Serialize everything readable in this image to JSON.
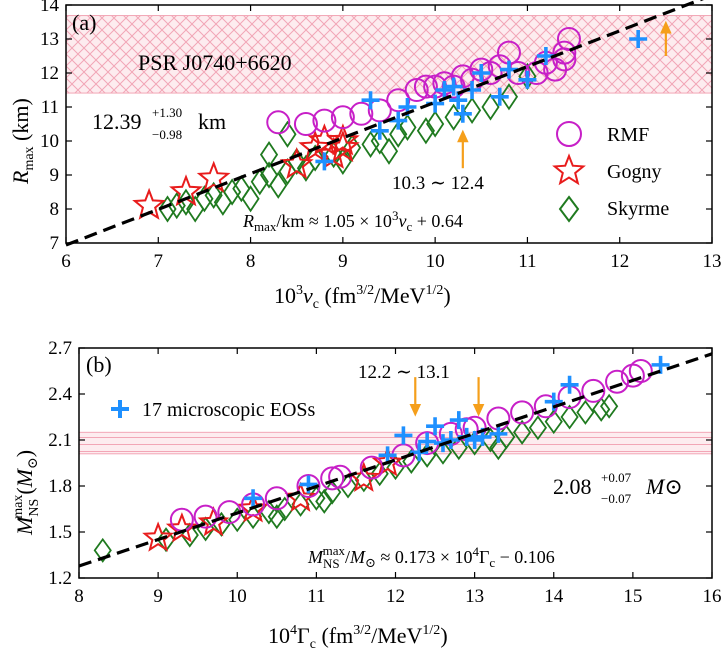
{
  "chart_data": [
    {
      "type": "scatter",
      "panel_label": "(a)",
      "xlabel": "10³ν_c (fm^{3/2}/MeV^{1/2})",
      "ylabel": "R_max (km)",
      "xlim": [
        6,
        13
      ],
      "ylim": [
        7,
        14
      ],
      "xticks": [
        "6",
        "7",
        "8",
        "9",
        "10",
        "11",
        "12",
        "13"
      ],
      "yticks": [
        "7",
        "8",
        "9",
        "10",
        "11",
        "12",
        "13",
        "14"
      ],
      "band": {
        "label": "PSR J0740+6620",
        "ymin": 11.41,
        "ymax": 13.69,
        "value": "12.39",
        "sup": "+1.30",
        "sub": "−0.98",
        "unit": "km"
      },
      "fit": {
        "slope": 1.05,
        "intercept": 0.64,
        "x_range": [
          6,
          13
        ],
        "label": "R_max/km ≈ 1.05 × 10³ν_c + 0.64"
      },
      "annotation": "10.3 ∼ 12.4",
      "arrows": [
        {
          "x": 10.3,
          "y_from": 9.2,
          "y_to": 10.3
        },
        {
          "x": 12.5,
          "y_from": 12.5,
          "y_to": 13.5
        }
      ],
      "legend": [
        "RMF",
        "Gogny",
        "Skyrme"
      ],
      "series": [
        {
          "name": "RMF",
          "marker": "circle",
          "points": [
            [
              8.3,
              10.55
            ],
            [
              8.6,
              10.5
            ],
            [
              8.8,
              10.6
            ],
            [
              9.0,
              10.7
            ],
            [
              9.2,
              10.8
            ],
            [
              9.4,
              10.9
            ],
            [
              9.6,
              11.2
            ],
            [
              9.8,
              11.5
            ],
            [
              9.9,
              11.6
            ],
            [
              10.0,
              11.6
            ],
            [
              10.1,
              11.7
            ],
            [
              10.2,
              11.6
            ],
            [
              10.3,
              11.9
            ],
            [
              10.4,
              11.8
            ],
            [
              10.5,
              12.1
            ],
            [
              10.6,
              12.0
            ],
            [
              10.7,
              12.2
            ],
            [
              10.8,
              12.6
            ],
            [
              10.9,
              12.0
            ],
            [
              11.1,
              12.0
            ],
            [
              11.2,
              12.3
            ],
            [
              11.3,
              12.1
            ],
            [
              11.4,
              12.4
            ],
            [
              11.45,
              13.0
            ],
            [
              11.4,
              12.6
            ]
          ]
        },
        {
          "name": "Gogny",
          "marker": "star",
          "points": [
            [
              6.9,
              8.1
            ],
            [
              7.3,
              8.5
            ],
            [
              7.6,
              8.9
            ],
            [
              8.5,
              9.3
            ],
            [
              8.7,
              9.8
            ],
            [
              8.8,
              10.0
            ],
            [
              9.0,
              9.8
            ],
            [
              8.9,
              9.6
            ],
            [
              9.0,
              10.0
            ]
          ]
        },
        {
          "name": "Skyrme",
          "marker": "diamond",
          "points": [
            [
              7.1,
              8.0
            ],
            [
              7.2,
              8.1
            ],
            [
              7.3,
              8.2
            ],
            [
              7.4,
              8.0
            ],
            [
              7.5,
              8.3
            ],
            [
              7.6,
              8.4
            ],
            [
              7.7,
              8.2
            ],
            [
              7.8,
              8.5
            ],
            [
              7.9,
              8.6
            ],
            [
              8.0,
              8.3
            ],
            [
              8.1,
              8.8
            ],
            [
              8.2,
              9.0
            ],
            [
              8.3,
              8.7
            ],
            [
              8.4,
              9.1
            ],
            [
              8.5,
              9.4
            ],
            [
              8.6,
              9.2
            ],
            [
              8.7,
              9.5
            ],
            [
              8.9,
              9.6
            ],
            [
              9.0,
              9.4
            ],
            [
              9.1,
              9.8
            ],
            [
              9.3,
              9.9
            ],
            [
              9.4,
              10.0
            ],
            [
              9.5,
              9.7
            ],
            [
              9.6,
              10.2
            ],
            [
              9.7,
              10.4
            ],
            [
              9.9,
              10.3
            ],
            [
              10.0,
              10.5
            ],
            [
              10.2,
              10.7
            ],
            [
              10.4,
              10.9
            ],
            [
              10.6,
              11.0
            ],
            [
              10.8,
              11.3
            ],
            [
              11.0,
              11.9
            ],
            [
              8.4,
              10.2
            ],
            [
              8.2,
              9.6
            ]
          ]
        },
        {
          "name": "17 microscopic EOSs",
          "marker": "plus",
          "points": [
            [
              8.8,
              9.4
            ],
            [
              9.3,
              11.2
            ],
            [
              9.4,
              10.3
            ],
            [
              9.6,
              10.6
            ],
            [
              9.7,
              11.0
            ],
            [
              10.0,
              11.1
            ],
            [
              10.1,
              11.5
            ],
            [
              10.2,
              11.6
            ],
            [
              10.25,
              11.2
            ],
            [
              10.3,
              10.8
            ],
            [
              10.4,
              11.5
            ],
            [
              10.5,
              12.0
            ],
            [
              10.7,
              11.3
            ],
            [
              10.8,
              12.1
            ],
            [
              11.0,
              11.8
            ],
            [
              11.2,
              12.5
            ],
            [
              12.2,
              13.0
            ]
          ]
        }
      ]
    },
    {
      "type": "scatter",
      "panel_label": "(b)",
      "xlabel": "10⁴Γ_c (fm^{3/2}/MeV^{1/2})",
      "ylabel": "M_NS^max (M_⊙)",
      "xlim": [
        8,
        16
      ],
      "ylim": [
        1.2,
        2.7
      ],
      "xticks": [
        "8",
        "9",
        "10",
        "11",
        "12",
        "13",
        "14",
        "15",
        "16"
      ],
      "yticks": [
        "1.2",
        "1.5",
        "1.8",
        "2.1",
        "2.4",
        "2.7"
      ],
      "band": {
        "ymin": 2.01,
        "ymax": 2.15,
        "value": "2.08",
        "sup": "+0.07",
        "sub": "−0.07",
        "unit": "M⊙"
      },
      "fit": {
        "slope": 0.173,
        "intercept": -0.106,
        "x_range": [
          8,
          16
        ],
        "label": "M_NS^max/M_⊙ ≈ 0.173 × 10⁴Γ_c − 0.106"
      },
      "annotation": "12.2 ∼ 13.1",
      "arrows": [
        {
          "x": 12.25,
          "y_from": 2.51,
          "y_to": 2.26
        },
        {
          "x": 13.05,
          "y_from": 2.51,
          "y_to": 2.26
        }
      ],
      "legend": [
        "17 microscopic EOSs"
      ],
      "series": [
        {
          "name": "RMF",
          "marker": "circle",
          "points": [
            [
              9.3,
              1.58
            ],
            [
              9.6,
              1.6
            ],
            [
              9.9,
              1.63
            ],
            [
              10.2,
              1.68
            ],
            [
              10.5,
              1.72
            ],
            [
              10.9,
              1.8
            ],
            [
              11.3,
              1.86
            ],
            [
              11.7,
              1.92
            ],
            [
              12.1,
              2.0
            ],
            [
              12.4,
              2.08
            ],
            [
              12.7,
              2.14
            ],
            [
              13.0,
              2.18
            ],
            [
              13.3,
              2.24
            ],
            [
              13.6,
              2.28
            ],
            [
              13.9,
              2.32
            ],
            [
              14.2,
              2.38
            ],
            [
              14.5,
              2.42
            ],
            [
              14.8,
              2.48
            ],
            [
              15.0,
              2.52
            ],
            [
              15.1,
              2.55
            ],
            [
              11.2,
              1.85
            ],
            [
              12.9,
              2.17
            ]
          ]
        },
        {
          "name": "Gogny",
          "marker": "star",
          "points": [
            [
              9.0,
              1.46
            ],
            [
              9.3,
              1.52
            ],
            [
              9.7,
              1.56
            ],
            [
              10.2,
              1.65
            ],
            [
              10.8,
              1.72
            ],
            [
              11.6,
              1.85
            ],
            [
              11.9,
              1.95
            ]
          ]
        },
        {
          "name": "Skyrme",
          "marker": "diamond",
          "points": [
            [
              8.3,
              1.38
            ],
            [
              9.1,
              1.45
            ],
            [
              9.4,
              1.48
            ],
            [
              9.6,
              1.52
            ],
            [
              9.8,
              1.55
            ],
            [
              10.0,
              1.58
            ],
            [
              10.2,
              1.6
            ],
            [
              10.4,
              1.63
            ],
            [
              10.6,
              1.65
            ],
            [
              10.8,
              1.68
            ],
            [
              11.0,
              1.72
            ],
            [
              11.2,
              1.76
            ],
            [
              11.4,
              1.8
            ],
            [
              11.6,
              1.84
            ],
            [
              11.8,
              1.88
            ],
            [
              12.0,
              1.92
            ],
            [
              12.2,
              1.96
            ],
            [
              12.4,
              2.0
            ],
            [
              12.6,
              2.02
            ],
            [
              12.8,
              2.05
            ],
            [
              13.0,
              2.08
            ],
            [
              13.2,
              2.1
            ],
            [
              13.4,
              2.12
            ],
            [
              13.6,
              2.15
            ],
            [
              13.8,
              2.18
            ],
            [
              14.0,
              2.22
            ],
            [
              14.2,
              2.25
            ],
            [
              14.4,
              2.28
            ],
            [
              14.6,
              2.3
            ],
            [
              10.5,
              1.6
            ],
            [
              11.1,
              1.7
            ],
            [
              13.3,
              2.05
            ],
            [
              14.7,
              2.32
            ]
          ]
        },
        {
          "name": "17 microscopic EOSs",
          "marker": "plus",
          "points": [
            [
              10.2,
              1.72
            ],
            [
              10.9,
              1.81
            ],
            [
              11.9,
              2.0
            ],
            [
              12.1,
              2.13
            ],
            [
              12.3,
              2.02
            ],
            [
              12.4,
              2.09
            ],
            [
              12.5,
              2.19
            ],
            [
              12.6,
              2.08
            ],
            [
              12.7,
              2.1
            ],
            [
              12.8,
              2.23
            ],
            [
              12.9,
              2.12
            ],
            [
              13.0,
              2.1
            ],
            [
              13.1,
              2.12
            ],
            [
              13.3,
              2.14
            ],
            [
              14.0,
              2.35
            ],
            [
              14.2,
              2.46
            ],
            [
              15.35,
              2.59
            ]
          ]
        }
      ]
    }
  ]
}
